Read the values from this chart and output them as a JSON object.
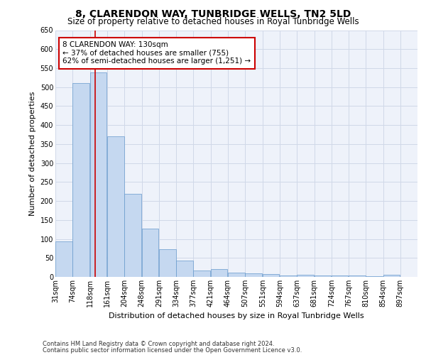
{
  "title": "8, CLARENDON WAY, TUNBRIDGE WELLS, TN2 5LD",
  "subtitle": "Size of property relative to detached houses in Royal Tunbridge Wells",
  "xlabel": "Distribution of detached houses by size in Royal Tunbridge Wells",
  "ylabel": "Number of detached properties",
  "footnote1": "Contains HM Land Registry data © Crown copyright and database right 2024.",
  "footnote2": "Contains public sector information licensed under the Open Government Licence v3.0.",
  "annotation_line1": "8 CLARENDON WAY: 130sqm",
  "annotation_line2": "← 37% of detached houses are smaller (755)",
  "annotation_line3": "62% of semi-detached houses are larger (1,251) →",
  "bar_color": "#c5d8f0",
  "bar_edge_color": "#6699cc",
  "grid_color": "#d0d8e8",
  "red_line_color": "#cc0000",
  "annotation_box_color": "#cc0000",
  "property_size": 130,
  "bin_edges": [
    31,
    74,
    118,
    161,
    204,
    248,
    291,
    334,
    377,
    421,
    464,
    507,
    551,
    594,
    637,
    681,
    724,
    767,
    810,
    854,
    897
  ],
  "bar_heights": [
    93,
    510,
    538,
    370,
    218,
    128,
    73,
    43,
    17,
    20,
    12,
    10,
    7,
    4,
    5,
    3,
    3,
    3,
    1,
    5
  ],
  "ylim": [
    0,
    650
  ],
  "yticks": [
    0,
    50,
    100,
    150,
    200,
    250,
    300,
    350,
    400,
    450,
    500,
    550,
    600,
    650
  ],
  "background_color": "#ffffff",
  "plot_bg_color": "#eef2fa",
  "title_fontsize": 10,
  "subtitle_fontsize": 8.5,
  "tick_fontsize": 7,
  "label_fontsize": 8,
  "footnote_fontsize": 6,
  "annotation_fontsize": 7.5
}
